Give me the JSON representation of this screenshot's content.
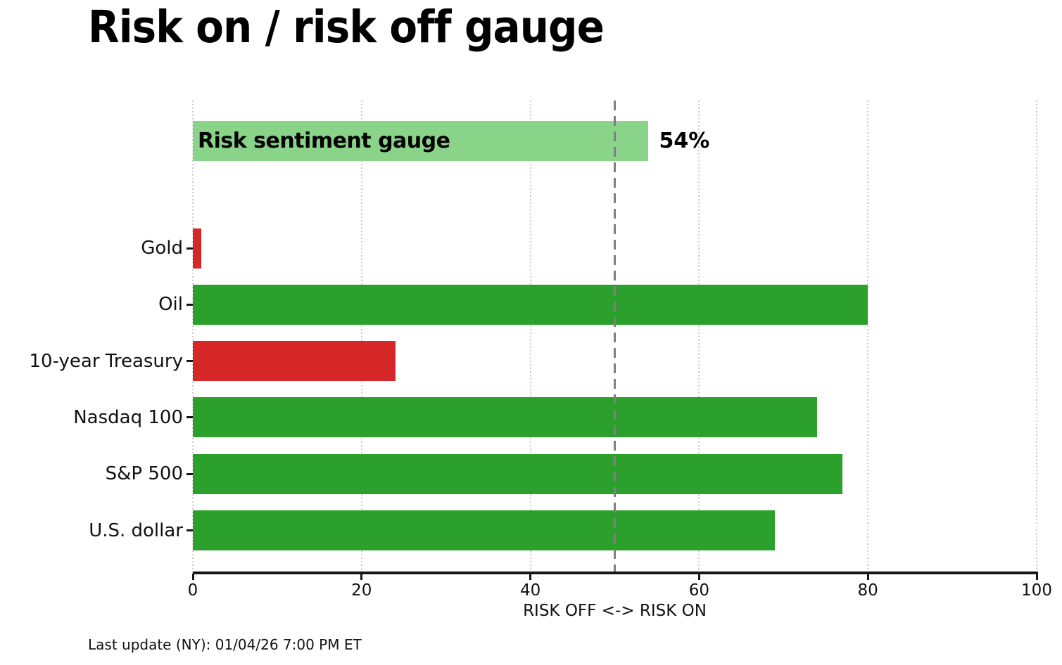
{
  "title": "Risk on / risk off gauge",
  "footer": "Last update (NY): 01/04/26 7:00 PM ET",
  "chart_data": {
    "type": "bar",
    "orientation": "horizontal",
    "title": "Risk on / risk off gauge",
    "xlabel": "RISK OFF <-> RISK ON",
    "xlim": [
      0,
      100
    ],
    "xticks": [
      0,
      20,
      40,
      60,
      80,
      100
    ],
    "grid": "vertical dotted gridlines at each x tick",
    "threshold_line": 50,
    "gauge": {
      "label": "Risk sentiment gauge",
      "value": 54,
      "value_label": "54%",
      "color": "#8ad48a"
    },
    "categories": [
      "Gold",
      "Oil",
      "10-year Treasury",
      "Nasdaq 100",
      "S&P 500",
      "U.S. dollar"
    ],
    "values": [
      1,
      80,
      24,
      74,
      77,
      69
    ],
    "bar_colors": [
      "#d62728",
      "#2ca02c",
      "#d62728",
      "#2ca02c",
      "#2ca02c",
      "#2ca02c"
    ],
    "colors": {
      "risk_on_green": "#2ca02c",
      "risk_off_red": "#d62728",
      "gauge_light_green": "#8ad48a",
      "threshold_gray": "#7f7f7f",
      "gridline_gray": "#cdcdcd"
    },
    "footer": "Last update (NY): 01/04/26 7:00 PM ET"
  }
}
